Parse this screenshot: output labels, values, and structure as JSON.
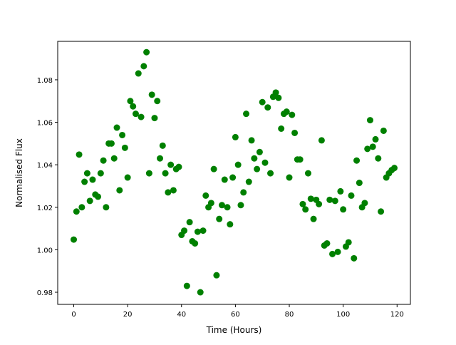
{
  "chart_data": {
    "type": "scatter",
    "title": "",
    "xlabel": "Time (Hours)",
    "ylabel": "Normalised Flux",
    "xlim": [
      -5.95,
      124.95
    ],
    "ylim": [
      0.9743,
      1.0981
    ],
    "xticks": [
      0,
      20,
      40,
      60,
      80,
      100,
      120
    ],
    "yticks": [
      0.98,
      1.0,
      1.02,
      1.04,
      1.06,
      1.08
    ],
    "ytick_labels": [
      "0.98",
      "1.00",
      "1.02",
      "1.04",
      "1.06",
      "1.08"
    ],
    "grid": false,
    "marker_color": "#008000",
    "series": [
      {
        "x": [
          0,
          1,
          2,
          3,
          4,
          5,
          6,
          7,
          8,
          9,
          10,
          11,
          12,
          13,
          14,
          15,
          16,
          17,
          18,
          19,
          20,
          21,
          22,
          23,
          24,
          25,
          26,
          27,
          28,
          29,
          30,
          31,
          32,
          33,
          34,
          35,
          36,
          37,
          38,
          39,
          40,
          41,
          42,
          43,
          44,
          45,
          46,
          47,
          48,
          49,
          50,
          51,
          52,
          53,
          54,
          55,
          56,
          57,
          58,
          59,
          60,
          61,
          62,
          63,
          64,
          65,
          66,
          67,
          68,
          69,
          70,
          71,
          72,
          73,
          74,
          75,
          76,
          77,
          78,
          79,
          80,
          81,
          82,
          83,
          84,
          85,
          86,
          87,
          88,
          89,
          90,
          91,
          92,
          93,
          94,
          95,
          96,
          97,
          98,
          99,
          100,
          101,
          102,
          103,
          104,
          105,
          106,
          107,
          108,
          109,
          110,
          111,
          112,
          113,
          114,
          115,
          116,
          117,
          118,
          119
        ],
        "y": [
          1.0048,
          1.018,
          1.0448,
          1.02,
          1.032,
          1.036,
          1.023,
          1.033,
          1.026,
          1.025,
          1.036,
          1.042,
          1.02,
          1.05,
          1.05,
          1.043,
          1.0575,
          1.028,
          1.054,
          1.048,
          1.034,
          1.07,
          1.0675,
          1.064,
          1.083,
          1.0625,
          1.0864,
          1.093,
          1.036,
          1.073,
          1.062,
          1.07,
          1.043,
          1.049,
          1.036,
          1.027,
          1.04,
          1.028,
          1.038,
          1.039,
          1.007,
          1.009,
          0.983,
          1.013,
          1.004,
          1.003,
          1.0085,
          0.98,
          1.009,
          1.0255,
          1.02,
          1.022,
          1.038,
          0.988,
          1.0145,
          1.021,
          1.033,
          1.02,
          1.012,
          1.034,
          1.053,
          1.04,
          1.021,
          1.027,
          1.064,
          1.032,
          1.0515,
          1.043,
          1.038,
          1.046,
          1.0695,
          1.041,
          1.067,
          1.036,
          1.072,
          1.074,
          1.0715,
          1.057,
          1.064,
          1.065,
          1.034,
          1.0635,
          1.055,
          1.0425,
          1.0425,
          1.0215,
          1.019,
          1.036,
          1.024,
          1.0145,
          1.0235,
          1.0215,
          1.0515,
          1.002,
          1.003,
          1.0235,
          0.998,
          1.023,
          0.999,
          1.0275,
          1.019,
          1.0015,
          1.0035,
          1.0255,
          0.996,
          1.042,
          1.0315,
          1.02,
          1.022,
          1.0475,
          1.061,
          1.0485,
          1.052,
          1.043,
          1.018,
          1.056,
          1.034,
          1.036,
          1.0375,
          1.0385
        ]
      }
    ]
  }
}
